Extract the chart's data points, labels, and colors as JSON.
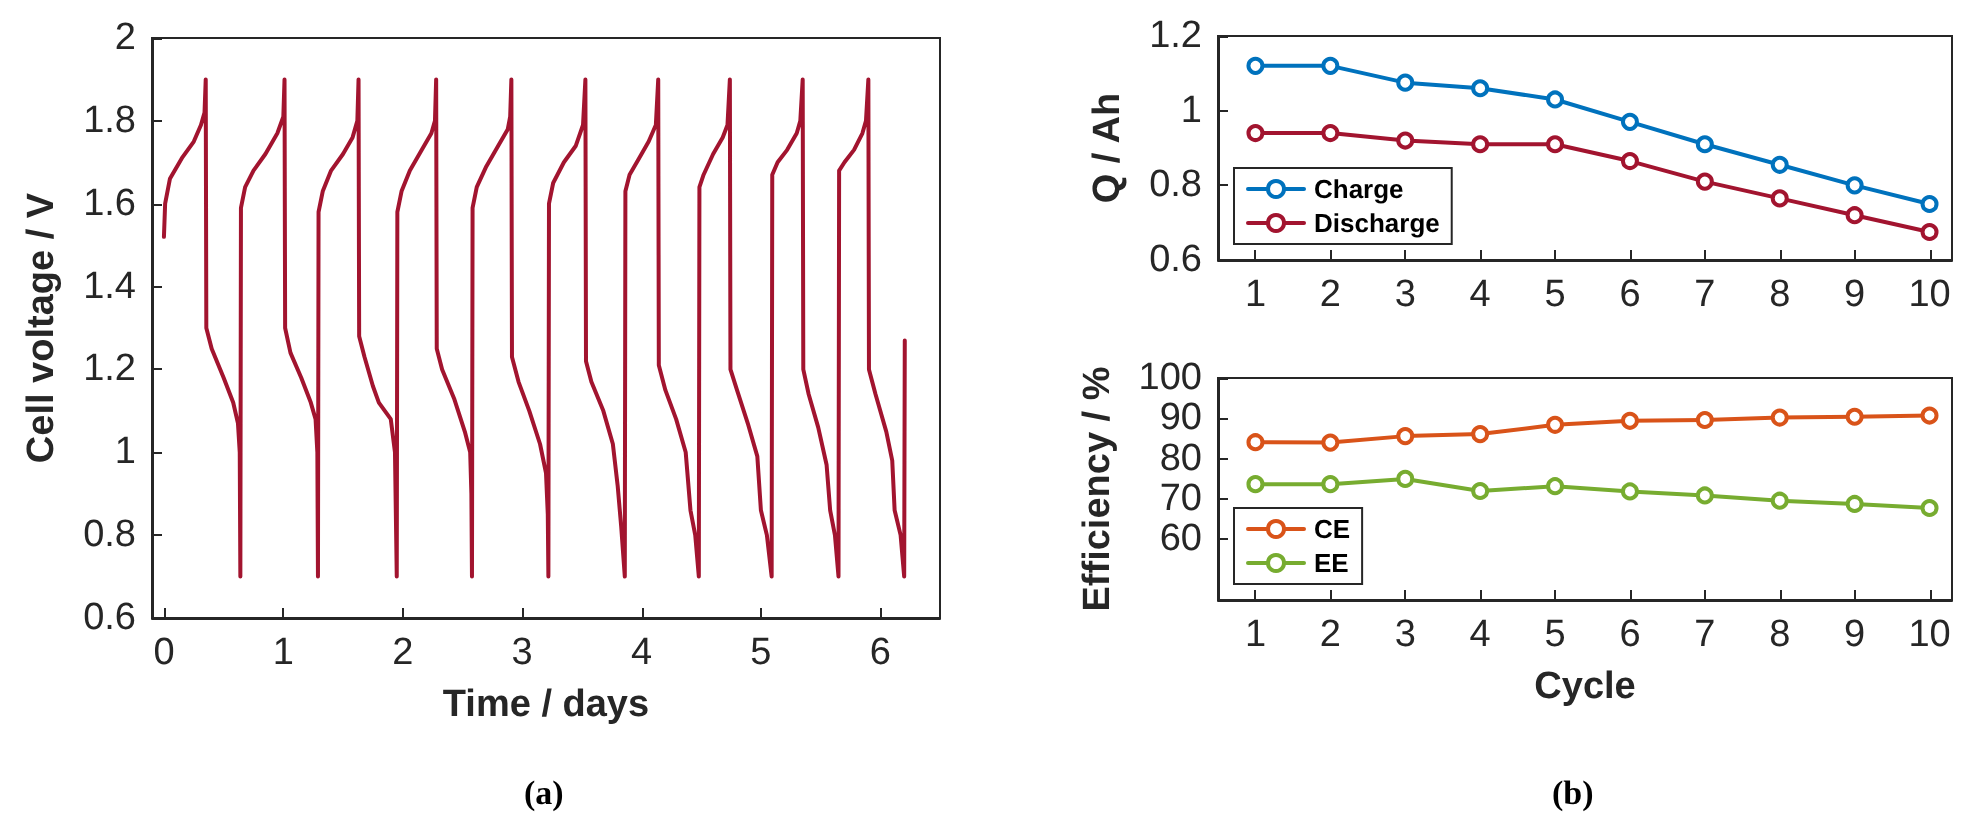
{
  "chart_data": [
    {
      "type": "line",
      "xlabel": "Time / days",
      "ylabel": "Cell voltage / V",
      "xlim": [
        -0.1,
        6.5
      ],
      "xticks": [
        0,
        1,
        2,
        3,
        4,
        5,
        6
      ],
      "ylim": [
        0.6,
        2
      ],
      "yticks": [
        0.6,
        0.8,
        1,
        1.2,
        1.4,
        1.6,
        1.8,
        2
      ],
      "grid": false,
      "legend": false,
      "marker": "none",
      "line_style": "solid",
      "annotations": [
        "(a)"
      ],
      "series": [
        {
          "color": "#a2142f",
          "x": [
            0,
            0.01,
            0.05,
            0.15,
            0.25,
            0.31,
            0.34,
            0.35,
            0.355,
            0.4,
            0.5,
            0.58,
            0.62,
            0.635,
            0.64,
            0.645,
            0.68,
            0.75,
            0.85,
            0.95,
            1.0,
            1.01,
            1.015,
            1.06,
            1.15,
            1.23,
            1.27,
            1.285,
            1.29,
            1.295,
            1.33,
            1.4,
            1.5,
            1.58,
            1.62,
            1.63,
            1.635,
            1.68,
            1.75,
            1.8,
            1.9,
            1.935,
            1.95,
            1.955,
            1.99,
            2.06,
            2.16,
            2.24,
            2.27,
            2.28,
            2.285,
            2.33,
            2.43,
            2.52,
            2.565,
            2.575,
            2.58,
            2.585,
            2.62,
            2.7,
            2.8,
            2.88,
            2.9,
            2.91,
            2.915,
            2.97,
            3.06,
            3.15,
            3.2,
            3.215,
            3.22,
            3.225,
            3.26,
            3.35,
            3.45,
            3.51,
            3.53,
            3.535,
            3.58,
            3.68,
            3.76,
            3.8,
            3.83,
            3.86,
            3.865,
            3.9,
            3.98,
            4.06,
            4.12,
            4.14,
            4.145,
            4.2,
            4.29,
            4.37,
            4.41,
            4.45,
            4.48,
            4.485,
            4.52,
            4.6,
            4.68,
            4.72,
            4.74,
            4.745,
            4.8,
            4.89,
            4.97,
            5.0,
            5.05,
            5.09,
            5.095,
            5.14,
            5.22,
            5.3,
            5.33,
            5.35,
            5.355,
            5.4,
            5.48,
            5.55,
            5.58,
            5.62,
            5.65,
            5.655,
            5.7,
            5.78,
            5.85,
            5.88,
            5.9,
            5.905,
            5.96,
            6.05,
            6.1,
            6.12,
            6.17,
            6.2,
            6.205
          ],
          "values": [
            1.52,
            1.6,
            1.66,
            1.71,
            1.75,
            1.79,
            1.82,
            1.9,
            1.3,
            1.25,
            1.18,
            1.12,
            1.07,
            1.0,
            0.7,
            1.59,
            1.64,
            1.68,
            1.72,
            1.77,
            1.81,
            1.9,
            1.3,
            1.24,
            1.18,
            1.12,
            1.08,
            1.0,
            0.7,
            1.58,
            1.63,
            1.68,
            1.72,
            1.76,
            1.8,
            1.9,
            1.28,
            1.23,
            1.16,
            1.12,
            1.08,
            1.0,
            0.7,
            1.58,
            1.63,
            1.68,
            1.73,
            1.77,
            1.8,
            1.9,
            1.25,
            1.2,
            1.13,
            1.05,
            1.0,
            0.9,
            0.7,
            1.59,
            1.64,
            1.69,
            1.74,
            1.78,
            1.81,
            1.9,
            1.23,
            1.17,
            1.1,
            1.02,
            0.95,
            0.85,
            0.7,
            1.6,
            1.65,
            1.7,
            1.74,
            1.79,
            1.9,
            1.22,
            1.17,
            1.1,
            1.02,
            0.92,
            0.82,
            0.7,
            1.63,
            1.67,
            1.71,
            1.75,
            1.79,
            1.9,
            1.21,
            1.15,
            1.08,
            1.0,
            0.86,
            0.8,
            0.7,
            1.64,
            1.67,
            1.72,
            1.76,
            1.79,
            1.9,
            1.2,
            1.15,
            1.07,
            0.99,
            0.86,
            0.8,
            0.7,
            1.67,
            1.7,
            1.73,
            1.77,
            1.8,
            1.9,
            1.2,
            1.14,
            1.06,
            0.97,
            0.86,
            0.8,
            0.7,
            1.68,
            1.7,
            1.73,
            1.77,
            1.8,
            1.9,
            1.2,
            1.14,
            1.05,
            0.98,
            0.86,
            0.8,
            0.7,
            1.27
          ]
        }
      ]
    },
    {
      "type": "line",
      "ylabel": "Q / Ah",
      "xlim": [
        0.5,
        10.3
      ],
      "xticks": [
        1,
        2,
        3,
        4,
        5,
        6,
        7,
        8,
        9,
        10
      ],
      "ylim": [
        0.6,
        1.2
      ],
      "yticks": [
        0.6,
        0.8,
        1,
        1.2
      ],
      "grid": false,
      "legend": "bottom left",
      "marker": "circle",
      "line_style": "solid",
      "x": [
        1,
        2,
        3,
        4,
        5,
        6,
        7,
        8,
        9,
        10
      ],
      "series": [
        {
          "name": "Charge",
          "color": "#0072bd",
          "values": [
            1.12,
            1.12,
            1.075,
            1.06,
            1.03,
            0.97,
            0.91,
            0.855,
            0.8,
            0.75
          ]
        },
        {
          "name": "Discharge",
          "color": "#a2142f",
          "values": [
            0.94,
            0.94,
            0.92,
            0.91,
            0.91,
            0.865,
            0.81,
            0.765,
            0.72,
            0.675
          ]
        }
      ]
    },
    {
      "type": "line",
      "xlabel": "Cycle",
      "ylabel": "Efficiency / %",
      "xlim": [
        0.5,
        10.3
      ],
      "xticks": [
        1,
        2,
        3,
        4,
        5,
        6,
        7,
        8,
        9,
        10
      ],
      "ylim": [
        45,
        100
      ],
      "yticks": [
        60,
        70,
        80,
        90,
        100
      ],
      "grid": false,
      "legend": "bottom left",
      "marker": "circle",
      "line_style": "solid",
      "x": [
        1,
        2,
        3,
        4,
        5,
        6,
        7,
        8,
        9,
        10
      ],
      "annotations": [
        "(b)"
      ],
      "series": [
        {
          "name": "CE",
          "color": "#d95319",
          "values": [
            84.1,
            84,
            85.6,
            86.1,
            88.4,
            89.4,
            89.6,
            90.2,
            90.4,
            90.7
          ]
        },
        {
          "name": "EE",
          "color": "#77ac30",
          "values": [
            73.7,
            73.7,
            75,
            72,
            73.2,
            71.9,
            70.9,
            69.6,
            68.8,
            67.8
          ]
        }
      ]
    }
  ]
}
